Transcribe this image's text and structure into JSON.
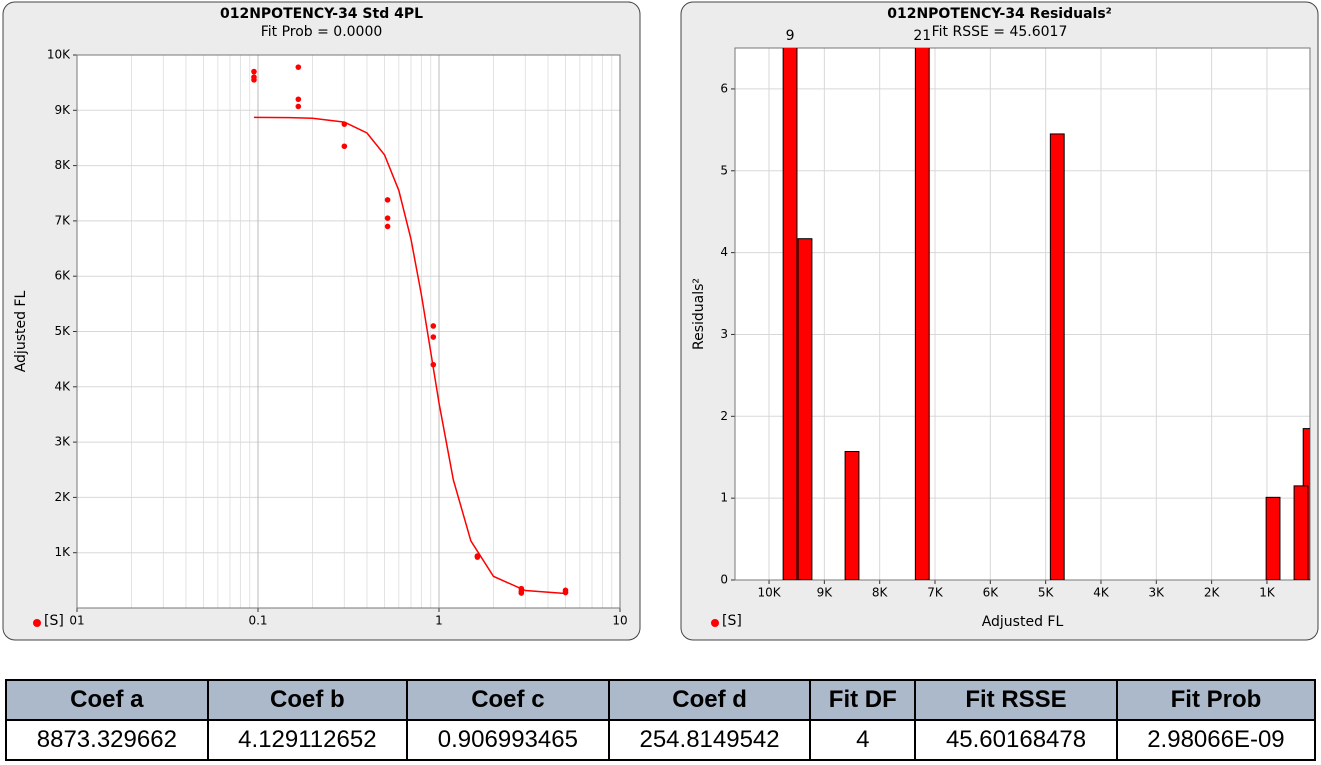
{
  "chart_data": [
    {
      "type": "scatter",
      "title": "012NPOTENCY-34 Std 4PL",
      "subtitle": "Fit Prob = 0.0000",
      "y_label": "Adjusted FL",
      "xlog": true,
      "xlim": [
        0.01,
        10
      ],
      "xticks": [
        {
          "value": 0.01,
          "label": "01"
        },
        0.1,
        1,
        10
      ],
      "ylim": [
        0,
        10000
      ],
      "yticks": [
        {
          "value": 1000,
          "label": "1K"
        },
        {
          "value": 2000,
          "label": "2K"
        },
        {
          "value": 3000,
          "label": "3K"
        },
        {
          "value": 4000,
          "label": "4K"
        },
        {
          "value": 5000,
          "label": "5K"
        },
        {
          "value": 6000,
          "label": "6K"
        },
        {
          "value": 7000,
          "label": "7K"
        },
        {
          "value": 8000,
          "label": "8K"
        },
        {
          "value": 9000,
          "label": "9K"
        },
        {
          "value": 10000,
          "label": "10K"
        }
      ],
      "grid": true,
      "legend": "bottom-left",
      "series": [
        {
          "name": "[S]",
          "color": "#ff0000",
          "x": [
            0.095,
            0.095,
            0.095,
            0.167,
            0.167,
            0.167,
            0.3,
            0.3,
            0.52,
            0.52,
            0.52,
            0.93,
            0.93,
            0.93,
            1.63,
            1.63,
            2.85,
            2.85,
            2.85,
            5.0,
            5.0
          ],
          "y": [
            9700,
            9600,
            9550,
            9780,
            9200,
            9070,
            8750,
            8350,
            7380,
            7050,
            6900,
            5100,
            4900,
            4400,
            920,
            940,
            350,
            300,
            270,
            320,
            280
          ]
        }
      ],
      "fit": {
        "color": "#ff0000",
        "x": [
          0.095,
          0.15,
          0.2,
          0.3,
          0.4,
          0.5,
          0.6,
          0.7,
          0.8,
          0.907,
          1.0,
          1.2,
          1.5,
          2,
          3,
          5
        ],
        "y": [
          8872,
          8868,
          8856,
          8787,
          8590,
          8194,
          7549,
          6671,
          5657,
          4564,
          3708,
          2318,
          1213,
          572,
          316,
          262
        ]
      }
    },
    {
      "type": "bar",
      "title": "012NPOTENCY-34 Residuals²",
      "subtitle": "Fit RSSE = 45.6017",
      "x_label": "Adjusted FL",
      "y_label": "Residuals²",
      "xlim": [
        10615,
        222
      ],
      "xticks": [
        {
          "value": 10000,
          "label": "10K"
        },
        {
          "value": 9000,
          "label": "9K"
        },
        {
          "value": 8000,
          "label": "8K"
        },
        {
          "value": 7000,
          "label": "7K"
        },
        {
          "value": 6000,
          "label": "6K"
        },
        {
          "value": 5000,
          "label": "5K"
        },
        {
          "value": 4000,
          "label": "4K"
        },
        {
          "value": 3000,
          "label": "3K"
        },
        {
          "value": 2000,
          "label": "2K"
        },
        {
          "value": 1000,
          "label": "1K"
        }
      ],
      "ylim": [
        0,
        6.5
      ],
      "yticks": [
        0,
        1,
        2,
        3,
        4,
        5,
        6
      ],
      "grid": true,
      "legend": "bottom-left",
      "legend_name": "[S]",
      "color": "#ff0000",
      "bar_width": 250,
      "x": [
        9620,
        9350,
        8500,
        7230,
        4790,
        890,
        220,
        385
      ],
      "values": [
        9,
        4.17,
        1.57,
        21,
        5.45,
        1.01,
        1.85,
        1.15
      ],
      "value_labels": [
        "9",
        null,
        null,
        "21",
        null,
        null,
        null,
        null
      ]
    }
  ],
  "table": {
    "header": [
      "Coef a",
      "Coef b",
      "Coef c",
      "Coef d",
      "Fit DF",
      "Fit RSSE",
      "Fit Prob"
    ],
    "rows": [
      [
        "8873.329662",
        "4.129112652",
        "0.906993465",
        "254.8149542",
        "4",
        "45.60168478",
        "2.98066E-09"
      ]
    ]
  }
}
